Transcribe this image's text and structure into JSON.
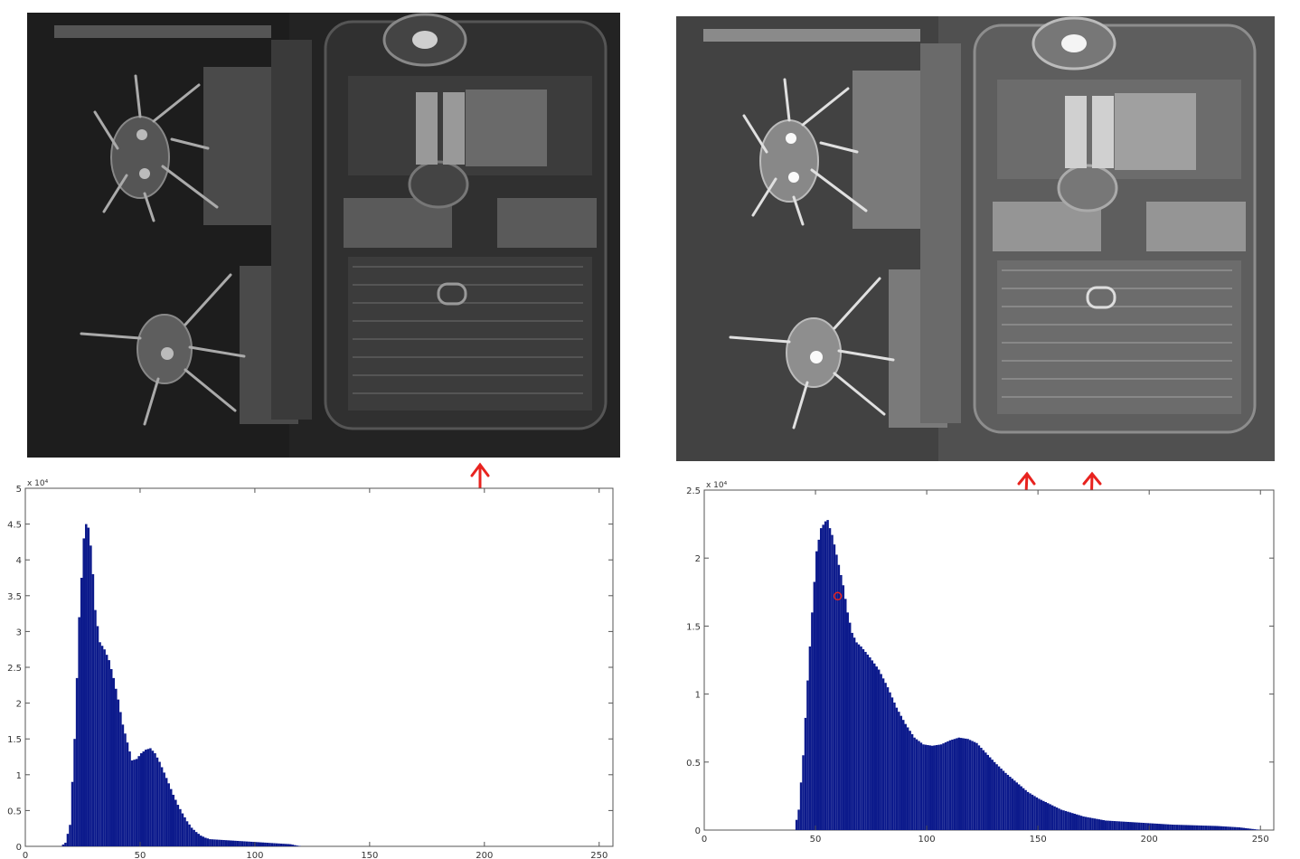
{
  "colors": {
    "bar_fill": "#0c1a8c",
    "bar_edge": "#061066",
    "arrow": "#e8231f",
    "marker": "#e8231f",
    "axis": "#555555"
  },
  "images": {
    "left": {
      "description_name": "aerial-airport-dark"
    },
    "right": {
      "description_name": "aerial-airport-equalized"
    }
  },
  "chart_data": [
    {
      "type": "bar",
      "title": "",
      "xlabel": "",
      "ylabel": "",
      "exponent_label": "x 10⁴",
      "xlim": [
        0,
        256
      ],
      "ylim": [
        0,
        5
      ],
      "xticks": [
        "0",
        "50",
        "100",
        "150",
        "200",
        "250"
      ],
      "yticks": [
        "0",
        "0.5",
        "1",
        "1.5",
        "2",
        "2.5",
        "3",
        "3.5",
        "4",
        "4.5",
        "5"
      ],
      "x": [
        15,
        17,
        19,
        21,
        23,
        25,
        26,
        27,
        28,
        29,
        30,
        32,
        34,
        36,
        38,
        40,
        42,
        44,
        46,
        48,
        50,
        52,
        54,
        56,
        58,
        60,
        62,
        64,
        66,
        68,
        70,
        72,
        74,
        76,
        78,
        80,
        85,
        90,
        95,
        100,
        105,
        110,
        115,
        118,
        120
      ],
      "values": [
        0.0,
        0.05,
        0.3,
        1.5,
        3.2,
        4.3,
        4.5,
        4.45,
        4.2,
        3.8,
        3.3,
        2.85,
        2.75,
        2.6,
        2.35,
        2.05,
        1.7,
        1.45,
        1.2,
        1.22,
        1.3,
        1.35,
        1.37,
        1.3,
        1.18,
        1.03,
        0.88,
        0.72,
        0.58,
        0.46,
        0.35,
        0.26,
        0.2,
        0.15,
        0.12,
        0.1,
        0.09,
        0.08,
        0.07,
        0.06,
        0.05,
        0.04,
        0.03,
        0.01,
        0.0
      ]
    },
    {
      "type": "bar",
      "title": "",
      "xlabel": "",
      "ylabel": "",
      "exponent_label": "x 10⁴",
      "xlim": [
        0,
        256
      ],
      "ylim": [
        0,
        2.5
      ],
      "xticks": [
        "0",
        "50",
        "100",
        "150",
        "200",
        "250"
      ],
      "yticks": [
        "0",
        "0.5",
        "1",
        "1.5",
        "2",
        "2.5"
      ],
      "x": [
        40,
        42,
        44,
        46,
        48,
        50,
        52,
        54,
        55,
        56,
        57,
        58,
        60,
        62,
        64,
        66,
        68,
        70,
        74,
        78,
        82,
        86,
        90,
        94,
        98,
        102,
        106,
        110,
        114,
        118,
        122,
        126,
        130,
        135,
        140,
        145,
        150,
        160,
        170,
        180,
        190,
        200,
        210,
        220,
        230,
        240,
        250
      ],
      "values": [
        0.0,
        0.15,
        0.55,
        1.1,
        1.6,
        2.05,
        2.22,
        2.27,
        2.28,
        2.22,
        2.17,
        2.1,
        1.95,
        1.8,
        1.6,
        1.45,
        1.38,
        1.35,
        1.27,
        1.18,
        1.05,
        0.9,
        0.78,
        0.68,
        0.63,
        0.62,
        0.63,
        0.66,
        0.68,
        0.67,
        0.64,
        0.57,
        0.5,
        0.42,
        0.35,
        0.28,
        0.23,
        0.15,
        0.1,
        0.07,
        0.06,
        0.05,
        0.04,
        0.035,
        0.03,
        0.02,
        0.0
      ],
      "marker": {
        "x": 60,
        "y": 1.72
      }
    }
  ]
}
